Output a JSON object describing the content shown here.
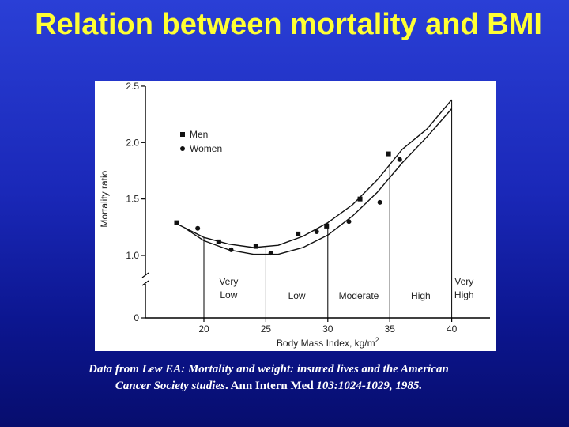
{
  "slide": {
    "title": "Relation between mortality and BMI"
  },
  "chart_data": {
    "type": "scatter",
    "title": "",
    "xlabel": "Body Mass Index, kg/m",
    "xlabel_superscript": "2",
    "ylabel": "Mortality ratio",
    "xlim": [
      14.5,
      41
    ],
    "ylim": [
      0,
      2.5
    ],
    "x_ticks": [
      20,
      25,
      30,
      35,
      40
    ],
    "x_tick_labels": [
      "20",
      "25",
      "30",
      "35",
      "40"
    ],
    "y_ticks": [
      0,
      1.0,
      1.5,
      2.0,
      2.5
    ],
    "y_tick_labels": [
      "0",
      "1.0",
      "1.5",
      "2.0",
      "2.5"
    ],
    "y_axis_break": true,
    "legend": "top-left",
    "series": [
      {
        "name": "Men",
        "marker": "square",
        "points": [
          [
            17.8,
            1.29
          ],
          [
            21.2,
            1.12
          ],
          [
            24.2,
            1.08
          ],
          [
            27.6,
            1.19
          ],
          [
            29.9,
            1.26
          ],
          [
            32.6,
            1.5
          ],
          [
            34.9,
            1.9
          ]
        ],
        "curve": [
          [
            18.0,
            1.27
          ],
          [
            20,
            1.16
          ],
          [
            22,
            1.1
          ],
          [
            24,
            1.07
          ],
          [
            26,
            1.09
          ],
          [
            28,
            1.17
          ],
          [
            30,
            1.29
          ],
          [
            32,
            1.45
          ],
          [
            34,
            1.67
          ],
          [
            36,
            1.94
          ],
          [
            38,
            2.12
          ],
          [
            40,
            2.38
          ]
        ]
      },
      {
        "name": "Women",
        "marker": "circle",
        "points": [
          [
            19.5,
            1.24
          ],
          [
            22.2,
            1.05
          ],
          [
            25.4,
            1.02
          ],
          [
            29.1,
            1.21
          ],
          [
            31.7,
            1.3
          ],
          [
            34.2,
            1.47
          ],
          [
            35.8,
            1.85
          ]
        ],
        "curve": [
          [
            18.5,
            1.24
          ],
          [
            20,
            1.13
          ],
          [
            22,
            1.05
          ],
          [
            24,
            1.01
          ],
          [
            26,
            1.01
          ],
          [
            28,
            1.07
          ],
          [
            30,
            1.18
          ],
          [
            32,
            1.35
          ],
          [
            34,
            1.56
          ],
          [
            36,
            1.82
          ],
          [
            38,
            2.05
          ],
          [
            40,
            2.3
          ]
        ]
      }
    ],
    "category_boundaries": [
      20,
      25,
      30,
      35,
      40
    ],
    "categories": [
      {
        "lines": [
          "Very",
          "Low"
        ],
        "x_center": 22
      },
      {
        "lines": [
          "Low"
        ],
        "x_center": 27.5
      },
      {
        "lines": [
          "Moderate"
        ],
        "x_center": 32.5
      },
      {
        "lines": [
          "High"
        ],
        "x_center": 37.5
      },
      {
        "lines": [
          "Very",
          "High"
        ],
        "x_center": 41
      }
    ]
  },
  "citation": {
    "line1": "Data from Lew EA: Mortality and weight: insured lives and the American",
    "line2_italic": "Cancer Society studies",
    "line2_plain": ". Ann Intern Med ",
    "line2_italic_end": "103:1024-1029, 1985."
  }
}
